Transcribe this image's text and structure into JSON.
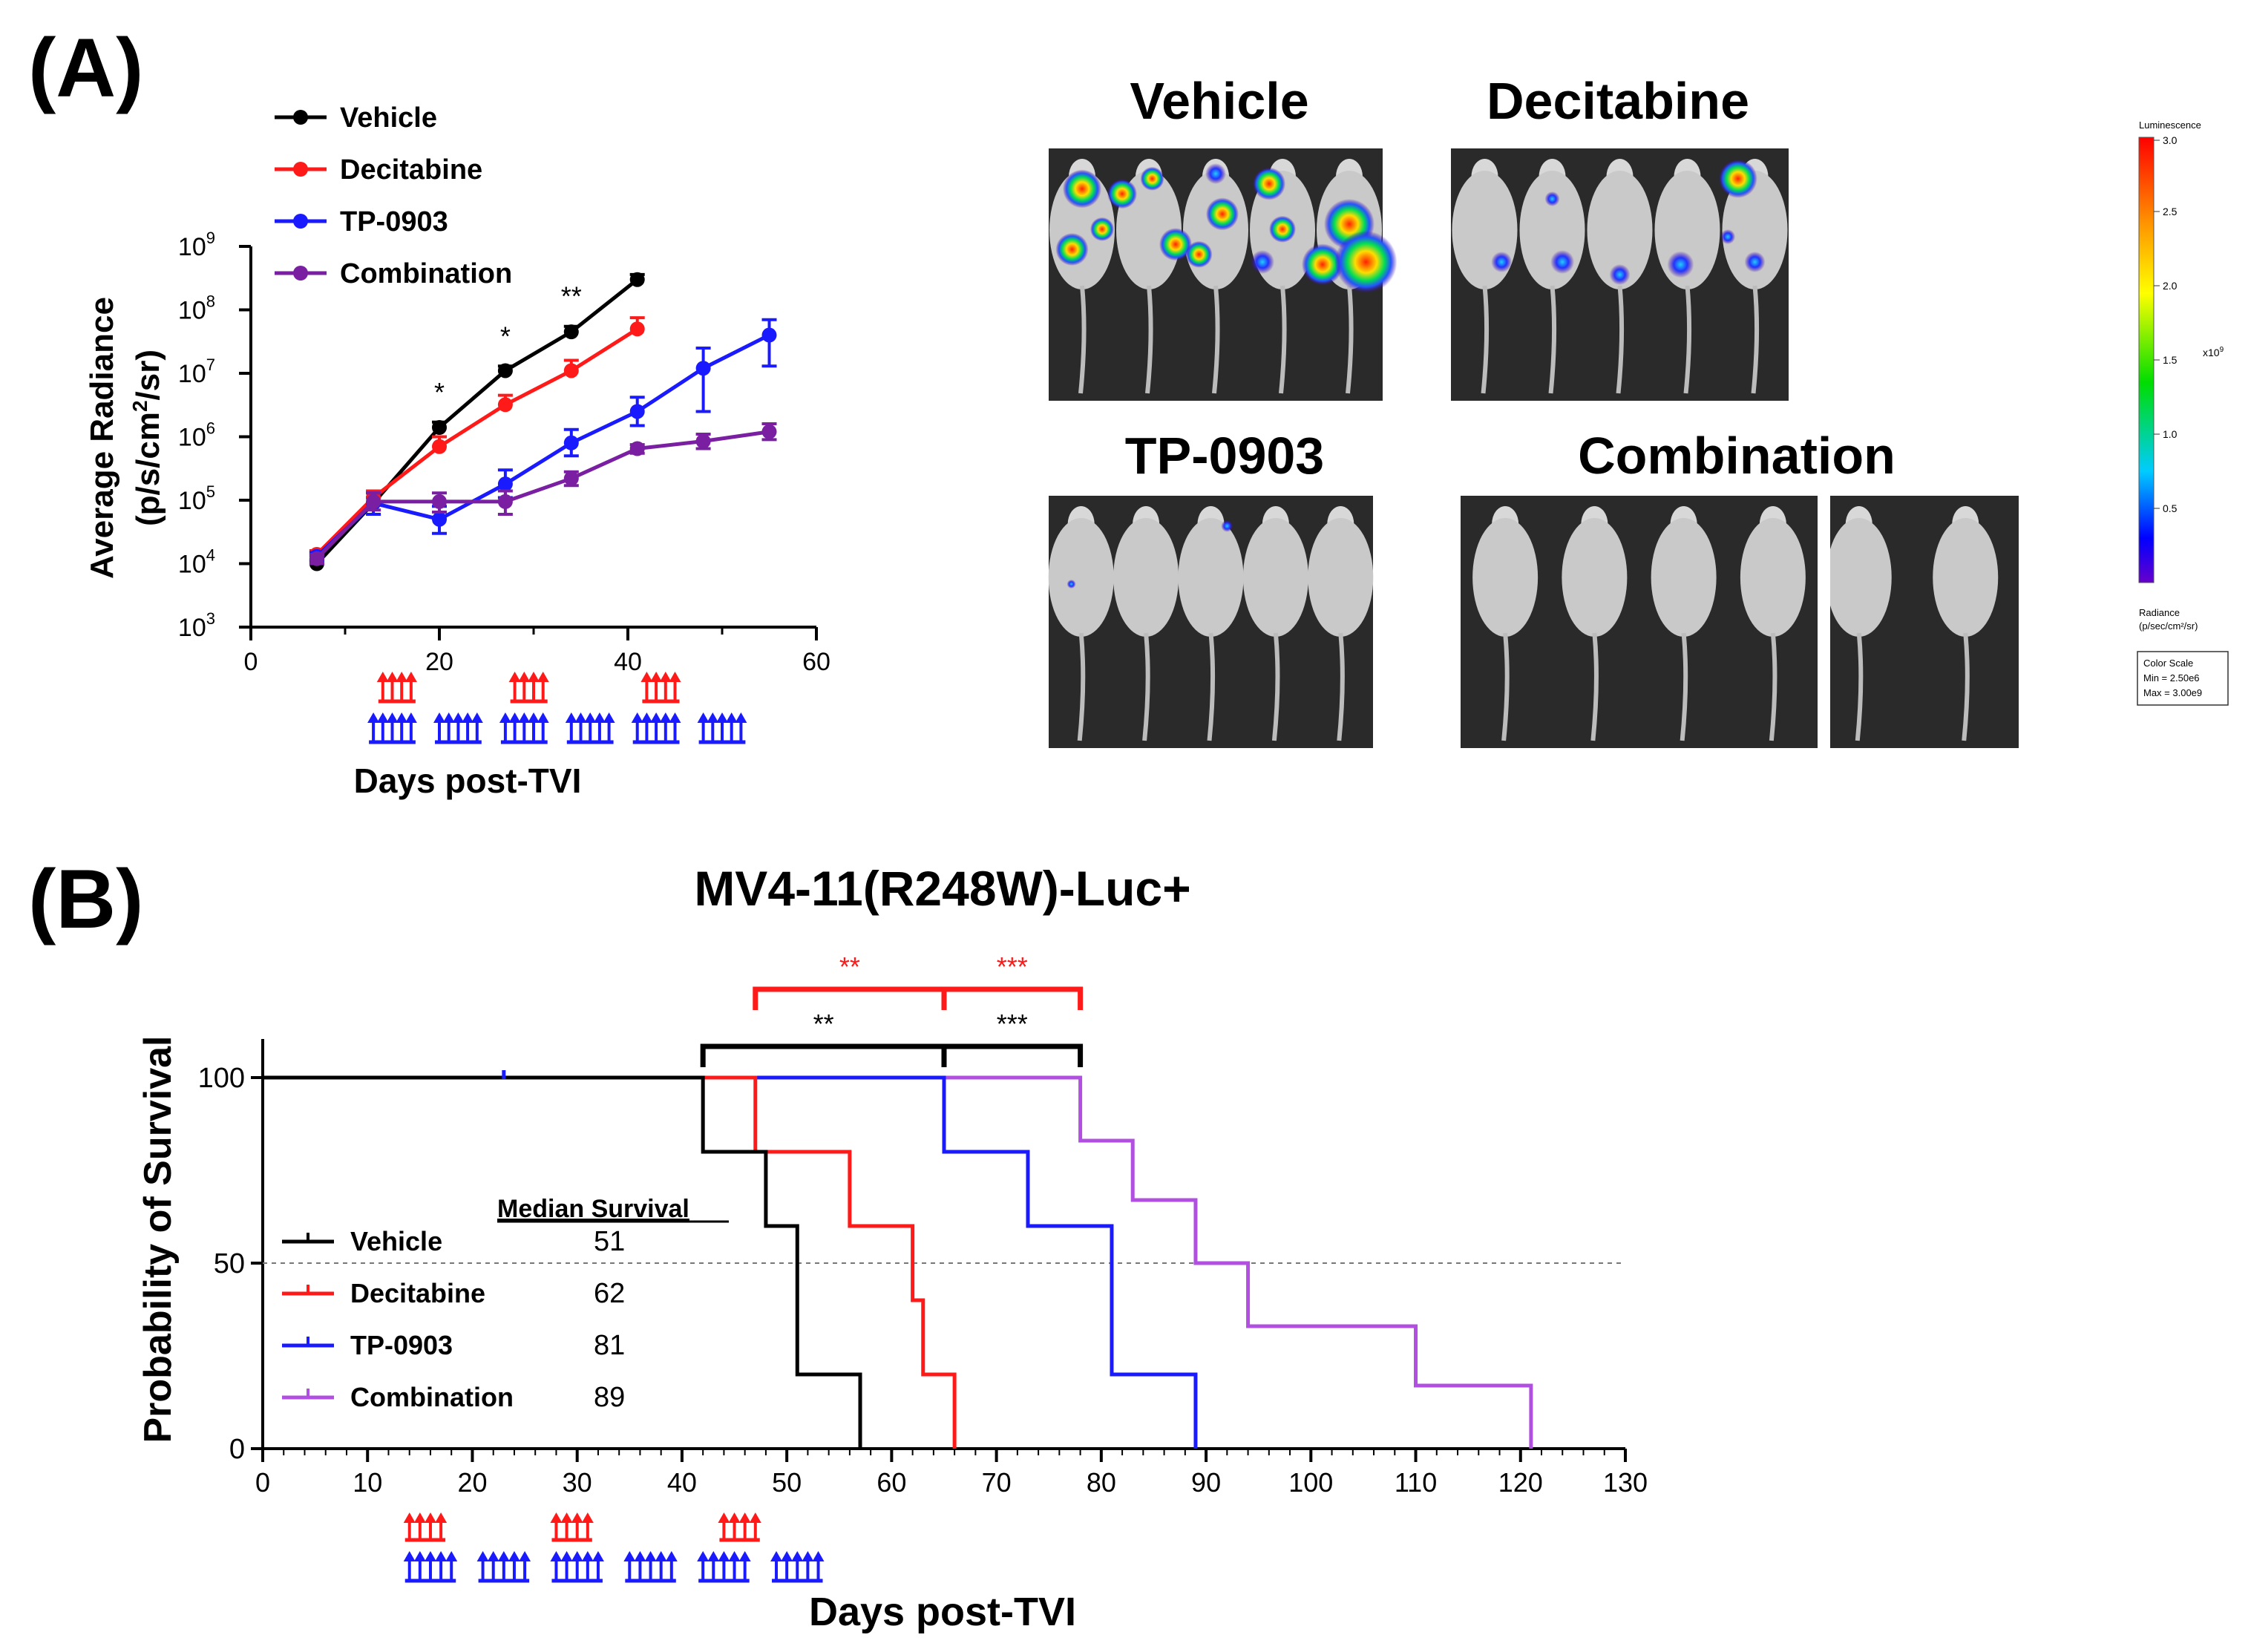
{
  "panel_labels": {
    "a": "(A)",
    "b": "(B)"
  },
  "chart_data": [
    {
      "type": "line",
      "panel": "A",
      "title": "",
      "xlabel": "Days post-TVI",
      "ylabel_line1": "Average  Radiance",
      "ylabel_line2_pre": "(p/s/cm",
      "ylabel_line2_sup": "2",
      "ylabel_line2_post": "/sr)",
      "xlim": [
        0,
        60
      ],
      "xticks": [
        0,
        20,
        40,
        60
      ],
      "ylim_log10": [
        3,
        9
      ],
      "yticks": [
        {
          "exp": 3,
          "label": "10",
          "sup": "3"
        },
        {
          "exp": 4,
          "label": "10",
          "sup": "4"
        },
        {
          "exp": 5,
          "label": "10",
          "sup": "5"
        },
        {
          "exp": 6,
          "label": "10",
          "sup": "6"
        },
        {
          "exp": 7,
          "label": "10",
          "sup": "7"
        },
        {
          "exp": 8,
          "label": "10",
          "sup": "8"
        },
        {
          "exp": 9,
          "label": "10",
          "sup": "9"
        }
      ],
      "scale": "log",
      "series": [
        {
          "name": "Vehicle",
          "color": "#000000",
          "x": [
            7,
            13,
            20,
            27,
            34,
            41
          ],
          "y": [
            10000,
            90000,
            1400000,
            11000000,
            45000000,
            300000000
          ],
          "err_upper": [
            11500,
            110000,
            1700000,
            13000000,
            55000000,
            360000000
          ]
        },
        {
          "name": "Decitabine",
          "color": "#ff1a1a",
          "x": [
            7,
            13,
            20,
            27,
            34,
            41
          ],
          "y": [
            14000,
            110000,
            700000,
            3200000,
            11000000,
            50000000
          ],
          "err_upper": [
            16000,
            140000,
            1000000,
            4500000,
            16000000,
            75000000
          ]
        },
        {
          "name": "TP-0903",
          "color": "#1a1aff",
          "x": [
            7,
            13,
            20,
            27,
            34,
            41,
            48,
            55
          ],
          "y": [
            13000,
            90000,
            50000,
            180000,
            800000,
            2500000,
            12000000,
            40000000
          ],
          "err_upper": [
            15000,
            130000,
            80000,
            300000,
            1300000,
            4200000,
            25000000,
            70000000
          ],
          "err_lower": [
            11000,
            60000,
            30000,
            110000,
            500000,
            1500000,
            2500000,
            13000000
          ]
        },
        {
          "name": "Combination",
          "color": "#7a1fa2",
          "x": [
            7,
            13,
            20,
            27,
            34,
            41,
            48,
            55
          ],
          "y": [
            12000,
            95000,
            95000,
            95000,
            220000,
            650000,
            850000,
            1200000
          ],
          "err_upper": [
            14000,
            130000,
            130000,
            140000,
            280000,
            750000,
            1100000,
            1600000
          ],
          "err_lower": [
            10000,
            70000,
            65000,
            60000,
            170000,
            550000,
            650000,
            900000
          ]
        }
      ],
      "annotations": [
        {
          "x": 20,
          "text": "*"
        },
        {
          "x": 27,
          "text": "*"
        },
        {
          "x": 34,
          "text": "**"
        }
      ],
      "dosing": {
        "red_groups": [
          [
            14,
            15,
            16,
            17
          ],
          [
            28,
            29,
            30,
            31
          ],
          [
            42,
            43,
            44,
            45
          ]
        ],
        "blue_groups": [
          [
            13,
            14,
            15,
            16,
            17
          ],
          [
            20,
            21,
            22,
            23,
            24
          ],
          [
            27,
            28,
            29,
            30,
            31
          ],
          [
            34,
            35,
            36,
            37,
            38
          ],
          [
            41,
            42,
            43,
            44,
            45
          ],
          [
            48,
            49,
            50,
            51,
            52
          ]
        ]
      }
    },
    {
      "type": "step",
      "panel": "B",
      "title": "MV4-11(R248W)-Luc+",
      "xlabel": "Days post-TVI",
      "ylabel": "Probability of Survival",
      "xlim": [
        0,
        130
      ],
      "xticks": [
        0,
        10,
        20,
        30,
        40,
        50,
        60,
        70,
        80,
        90,
        100,
        110,
        120,
        130
      ],
      "ylim": [
        0,
        100
      ],
      "yticks": [
        0,
        50,
        100
      ],
      "median_line": 50,
      "legend_heading": "Median Survival",
      "series": [
        {
          "name": "Vehicle",
          "color": "#000000",
          "median": "51",
          "x": [
            0,
            42,
            48,
            51,
            57
          ],
          "y": [
            100,
            80,
            60,
            20,
            0
          ]
        },
        {
          "name": "Decitabine",
          "color": "#ff1a1a",
          "median": "62",
          "x": [
            0,
            47,
            56,
            62,
            63,
            66
          ],
          "y": [
            100,
            80,
            60,
            40,
            20,
            0
          ]
        },
        {
          "name": "TP-0903",
          "color": "#1a1aff",
          "median": "81",
          "x": [
            0,
            65,
            73,
            81,
            89
          ],
          "y": [
            100,
            80,
            60,
            20,
            0
          ]
        },
        {
          "name": "Combination",
          "color": "#b04fe0",
          "median": "89",
          "x": [
            0,
            78,
            83,
            89,
            94,
            110,
            121
          ],
          "y": [
            100,
            83,
            67,
            50,
            33,
            17,
            0
          ]
        }
      ],
      "censor_marks": [
        {
          "x": 23,
          "y": 100,
          "color": "#1a1aff"
        }
      ],
      "significance": [
        {
          "from": 47,
          "to": 65,
          "text": "**",
          "color": "#ff1a1a",
          "level": "top"
        },
        {
          "from": 65,
          "to": 78,
          "text": "***",
          "color": "#ff1a1a",
          "level": "top"
        },
        {
          "from": 42,
          "to": 65,
          "text": "**",
          "color": "#000000",
          "level": "bottom"
        },
        {
          "from": 65,
          "to": 78,
          "text": "***",
          "color": "#000000",
          "level": "bottom"
        }
      ],
      "dosing": {
        "red_groups": [
          [
            14,
            15,
            16,
            17
          ],
          [
            28,
            29,
            30,
            31
          ],
          [
            44,
            45,
            46,
            47
          ]
        ],
        "blue_groups": [
          [
            14,
            15,
            16,
            17,
            18
          ],
          [
            21,
            22,
            23,
            24,
            25
          ],
          [
            28,
            29,
            30,
            31,
            32
          ],
          [
            35,
            36,
            37,
            38,
            39
          ],
          [
            42,
            43,
            44,
            45,
            46
          ],
          [
            49,
            50,
            51,
            52,
            53
          ]
        ]
      }
    }
  ],
  "images": {
    "groups": [
      {
        "label": "Vehicle",
        "mice": 5
      },
      {
        "label": "Decitabine",
        "mice": 5
      },
      {
        "label": "TP-0903",
        "mice": 5
      },
      {
        "label": "Combination",
        "mice": 6
      }
    ],
    "colorbar": {
      "title": "Luminescence",
      "ticks": [
        "3.0",
        "2.5",
        "2.0",
        "1.5",
        "1.0",
        "0.5"
      ],
      "unit": "x10",
      "unit_sup": "9",
      "radiance_line1": "Radiance",
      "radiance_line2": "(p/sec/cm²/sr)",
      "scale_line1": "Color Scale",
      "scale_line2": "Min = 2.50e6",
      "scale_line3": "Max = 3.00e9"
    }
  }
}
